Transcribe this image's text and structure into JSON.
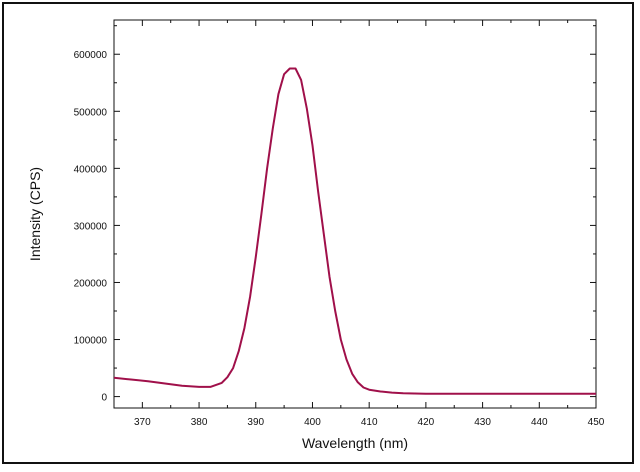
{
  "chart_data": {
    "type": "line",
    "title": "",
    "xlabel": "Wavelength (nm)",
    "ylabel": "Intensity (CPS)",
    "xlim": [
      365,
      450
    ],
    "ylim": [
      -20000,
      660000
    ],
    "x_ticks": [
      370,
      380,
      390,
      400,
      410,
      420,
      430,
      440,
      450
    ],
    "y_ticks": [
      0,
      100000,
      200000,
      300000,
      400000,
      500000,
      600000
    ],
    "grid": false,
    "legend": "none",
    "series": [
      {
        "color": "#a0104a",
        "x": [
          365,
          368,
          371,
          374,
          377,
          380,
          382,
          384,
          385,
          386,
          387,
          388,
          389,
          390,
          391,
          392,
          393,
          394,
          395,
          396,
          397,
          398,
          399,
          400,
          401,
          402,
          403,
          404,
          405,
          406,
          407,
          408,
          409,
          410,
          412,
          414,
          416,
          420,
          425,
          430,
          435,
          440,
          445,
          450
        ],
        "y": [
          33000,
          30000,
          27000,
          23000,
          19000,
          17000,
          17000,
          24000,
          34000,
          50000,
          80000,
          120000,
          175000,
          245000,
          320000,
          400000,
          470000,
          530000,
          565000,
          575000,
          575000,
          555000,
          505000,
          440000,
          360000,
          285000,
          210000,
          150000,
          100000,
          65000,
          40000,
          25000,
          16000,
          12000,
          9000,
          7000,
          6000,
          5000,
          5000,
          5000,
          5000,
          5000,
          5000,
          5000
        ]
      }
    ]
  }
}
